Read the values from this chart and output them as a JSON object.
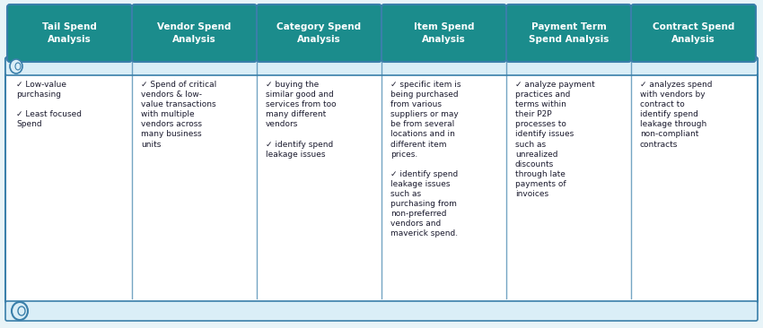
{
  "columns": [
    {
      "header": "Tail Spend\nAnalysis",
      "bullets": [
        "Low-value\npurchasing",
        "Least focused\nSpend"
      ]
    },
    {
      "header": "Vendor Spend\nAnalysis",
      "bullets": [
        "Spend of critical\nvendors & low-\nvalue transactions\nwith multiple\nvendors across\nmany business\nunits"
      ]
    },
    {
      "header": "Category Spend\nAnalysis",
      "bullets": [
        "buying the\nsimilar good and\nservices from too\nmany different\nvendors",
        "identify spend\nleakage issues"
      ]
    },
    {
      "header": "Item Spend\nAnalysis",
      "bullets": [
        "specific item is\nbeing purchased\nfrom various\nsuppliers or may\nbe from several\nlocations and in\ndifferent item\nprices.",
        "identify spend\nleakage issues\nsuch as\npurchasing from\nnon-preferred\nvendors and\nmaverick spend."
      ]
    },
    {
      "header": "Payment Term\nSpend Analysis",
      "bullets": [
        "analyze payment\npractices and\nterms within\ntheir P2P\nprocesses to\nidentify issues\nsuch as\nunrealized\ndiscounts\nthrough late\npayments of\ninvoices"
      ]
    },
    {
      "header": "Contract Spend\nAnalysis",
      "bullets": [
        "analyzes spend\nwith vendors by\ncontract to\nidentify spend\nleakage through\nnon-compliant\ncontracts"
      ]
    }
  ],
  "header_bg_color": "#1b8c8c",
  "header_text_color": "#ffffff",
  "body_bg_color": "#ffffff",
  "border_color": "#3a7faa",
  "scroll_bg_color": "#daeef7",
  "outer_bg_color": "#e8f4f8",
  "bullet_char": "✓",
  "fig_width": 8.5,
  "fig_height": 3.66,
  "dpi": 100
}
